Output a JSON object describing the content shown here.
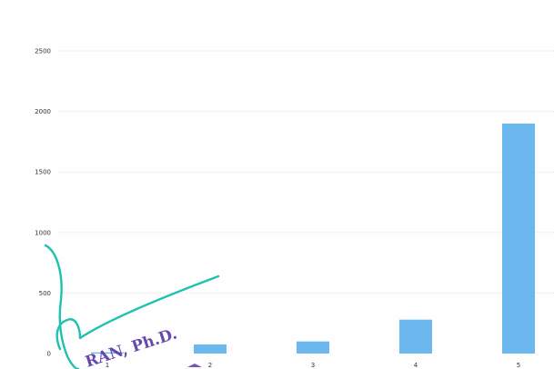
{
  "colors": {
    "bar": "#6cb8ee",
    "grid": "#e4e4e4",
    "signature": "#1fc2b0",
    "stamp": "#5a3aa8"
  },
  "chart_data": {
    "type": "bar",
    "categories": [
      "1",
      "2",
      "3",
      "4",
      "5"
    ],
    "values": [
      10,
      75,
      100,
      280,
      1900
    ],
    "title": "",
    "xlabel": "",
    "ylabel": "",
    "ylim": [
      0,
      2500
    ],
    "yticks": [
      0,
      500,
      1000,
      1500,
      2000,
      2500
    ],
    "ytick_labels": [
      "0",
      "500",
      "1000",
      "1500",
      "2000",
      "2500"
    ],
    "xtick_labels": [
      "1",
      "2",
      "3",
      "4",
      "5"
    ],
    "grid": true,
    "legend": "none"
  },
  "overlays": {
    "stamp_text": "RAN, Ph.D."
  }
}
